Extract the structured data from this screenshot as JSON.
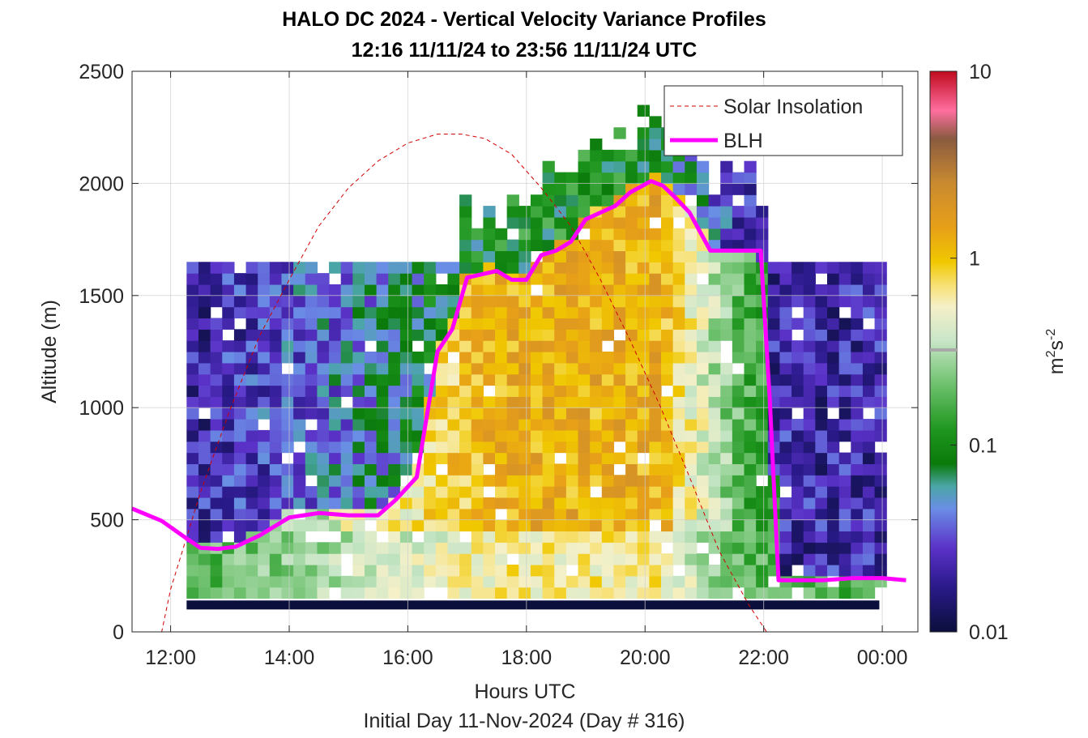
{
  "chart_data": {
    "type": "heatmap",
    "title": "HALO DC 2024 - Vertical Velocity Variance Profiles",
    "subtitle": "12:16 11/11/24 to 23:56 11/11/24  UTC",
    "xlabel": "Hours UTC",
    "ylabel": "Altitude (m)",
    "footer": "Initial Day 11-Nov-2024 (Day # 316)",
    "colorbar_label_base": "m",
    "colorbar_label_exp1": "2",
    "colorbar_label_mid": "s",
    "colorbar_label_exp2": "-2",
    "colorbar_scale": "log",
    "colorbar_range": [
      0.01,
      10
    ],
    "colorbar_ticks": [
      "0.01",
      "0.1",
      "1",
      "10"
    ],
    "x_ticks": [
      "12:00",
      "14:00",
      "16:00",
      "18:00",
      "20:00",
      "22:00",
      "00:00"
    ],
    "xlim_hours": [
      11.35,
      24.6
    ],
    "y_ticks": [
      "0",
      "500",
      "1000",
      "1500",
      "2000",
      "2500"
    ],
    "ylim": [
      0,
      2500
    ],
    "grid": true,
    "legend_position": "top-right",
    "legend": [
      "Solar Insolation",
      "BLH"
    ],
    "colors": {
      "blh": "#ff00ff",
      "insolation": "#d00000"
    },
    "blh": {
      "hours": [
        11.35,
        11.85,
        12.25,
        12.5,
        12.8,
        13.1,
        13.5,
        14.0,
        14.5,
        15.0,
        15.5,
        15.8,
        16.15,
        16.5,
        16.75,
        17.0,
        17.5,
        17.75,
        18.0,
        18.25,
        18.5,
        18.75,
        19.0,
        19.25,
        19.5,
        19.75,
        20.1,
        20.3,
        20.5,
        20.75,
        21.1,
        21.25,
        21.5,
        21.75,
        21.95,
        22.1,
        22.25,
        22.5,
        23.0,
        23.5,
        24.0,
        24.4
      ],
      "altitude": [
        550,
        495,
        420,
        375,
        370,
        380,
        430,
        510,
        530,
        520,
        520,
        590,
        690,
        1250,
        1350,
        1580,
        1610,
        1570,
        1570,
        1680,
        1700,
        1740,
        1840,
        1870,
        1900,
        1960,
        2010,
        1990,
        1940,
        1870,
        1700,
        1700,
        1700,
        1700,
        1700,
        1050,
        230,
        230,
        230,
        240,
        240,
        230
      ]
    },
    "insolation": {
      "hours": [
        11.35,
        11.85,
        12.0,
        12.5,
        13.0,
        13.5,
        14.0,
        14.5,
        15.0,
        15.5,
        16.0,
        16.5,
        16.9,
        17.3,
        17.75,
        18.25,
        18.75,
        19.25,
        19.75,
        20.25,
        20.75,
        21.25,
        21.75,
        22.05,
        22.3,
        24.6
      ],
      "altitude": [
        0,
        0,
        190,
        620,
        990,
        1320,
        1570,
        1810,
        1980,
        2100,
        2180,
        2220,
        2220,
        2200,
        2130,
        1980,
        1810,
        1570,
        1300,
        1010,
        690,
        360,
        120,
        0,
        0,
        0
      ]
    },
    "variance_field": {
      "start_hour": 12.27,
      "end_hour": 23.95,
      "column_step_hours": 0.2,
      "layer_thickness_m": 50,
      "bottom_band_altitude": [
        100,
        140
      ],
      "note_units": "m2s-2"
    }
  }
}
